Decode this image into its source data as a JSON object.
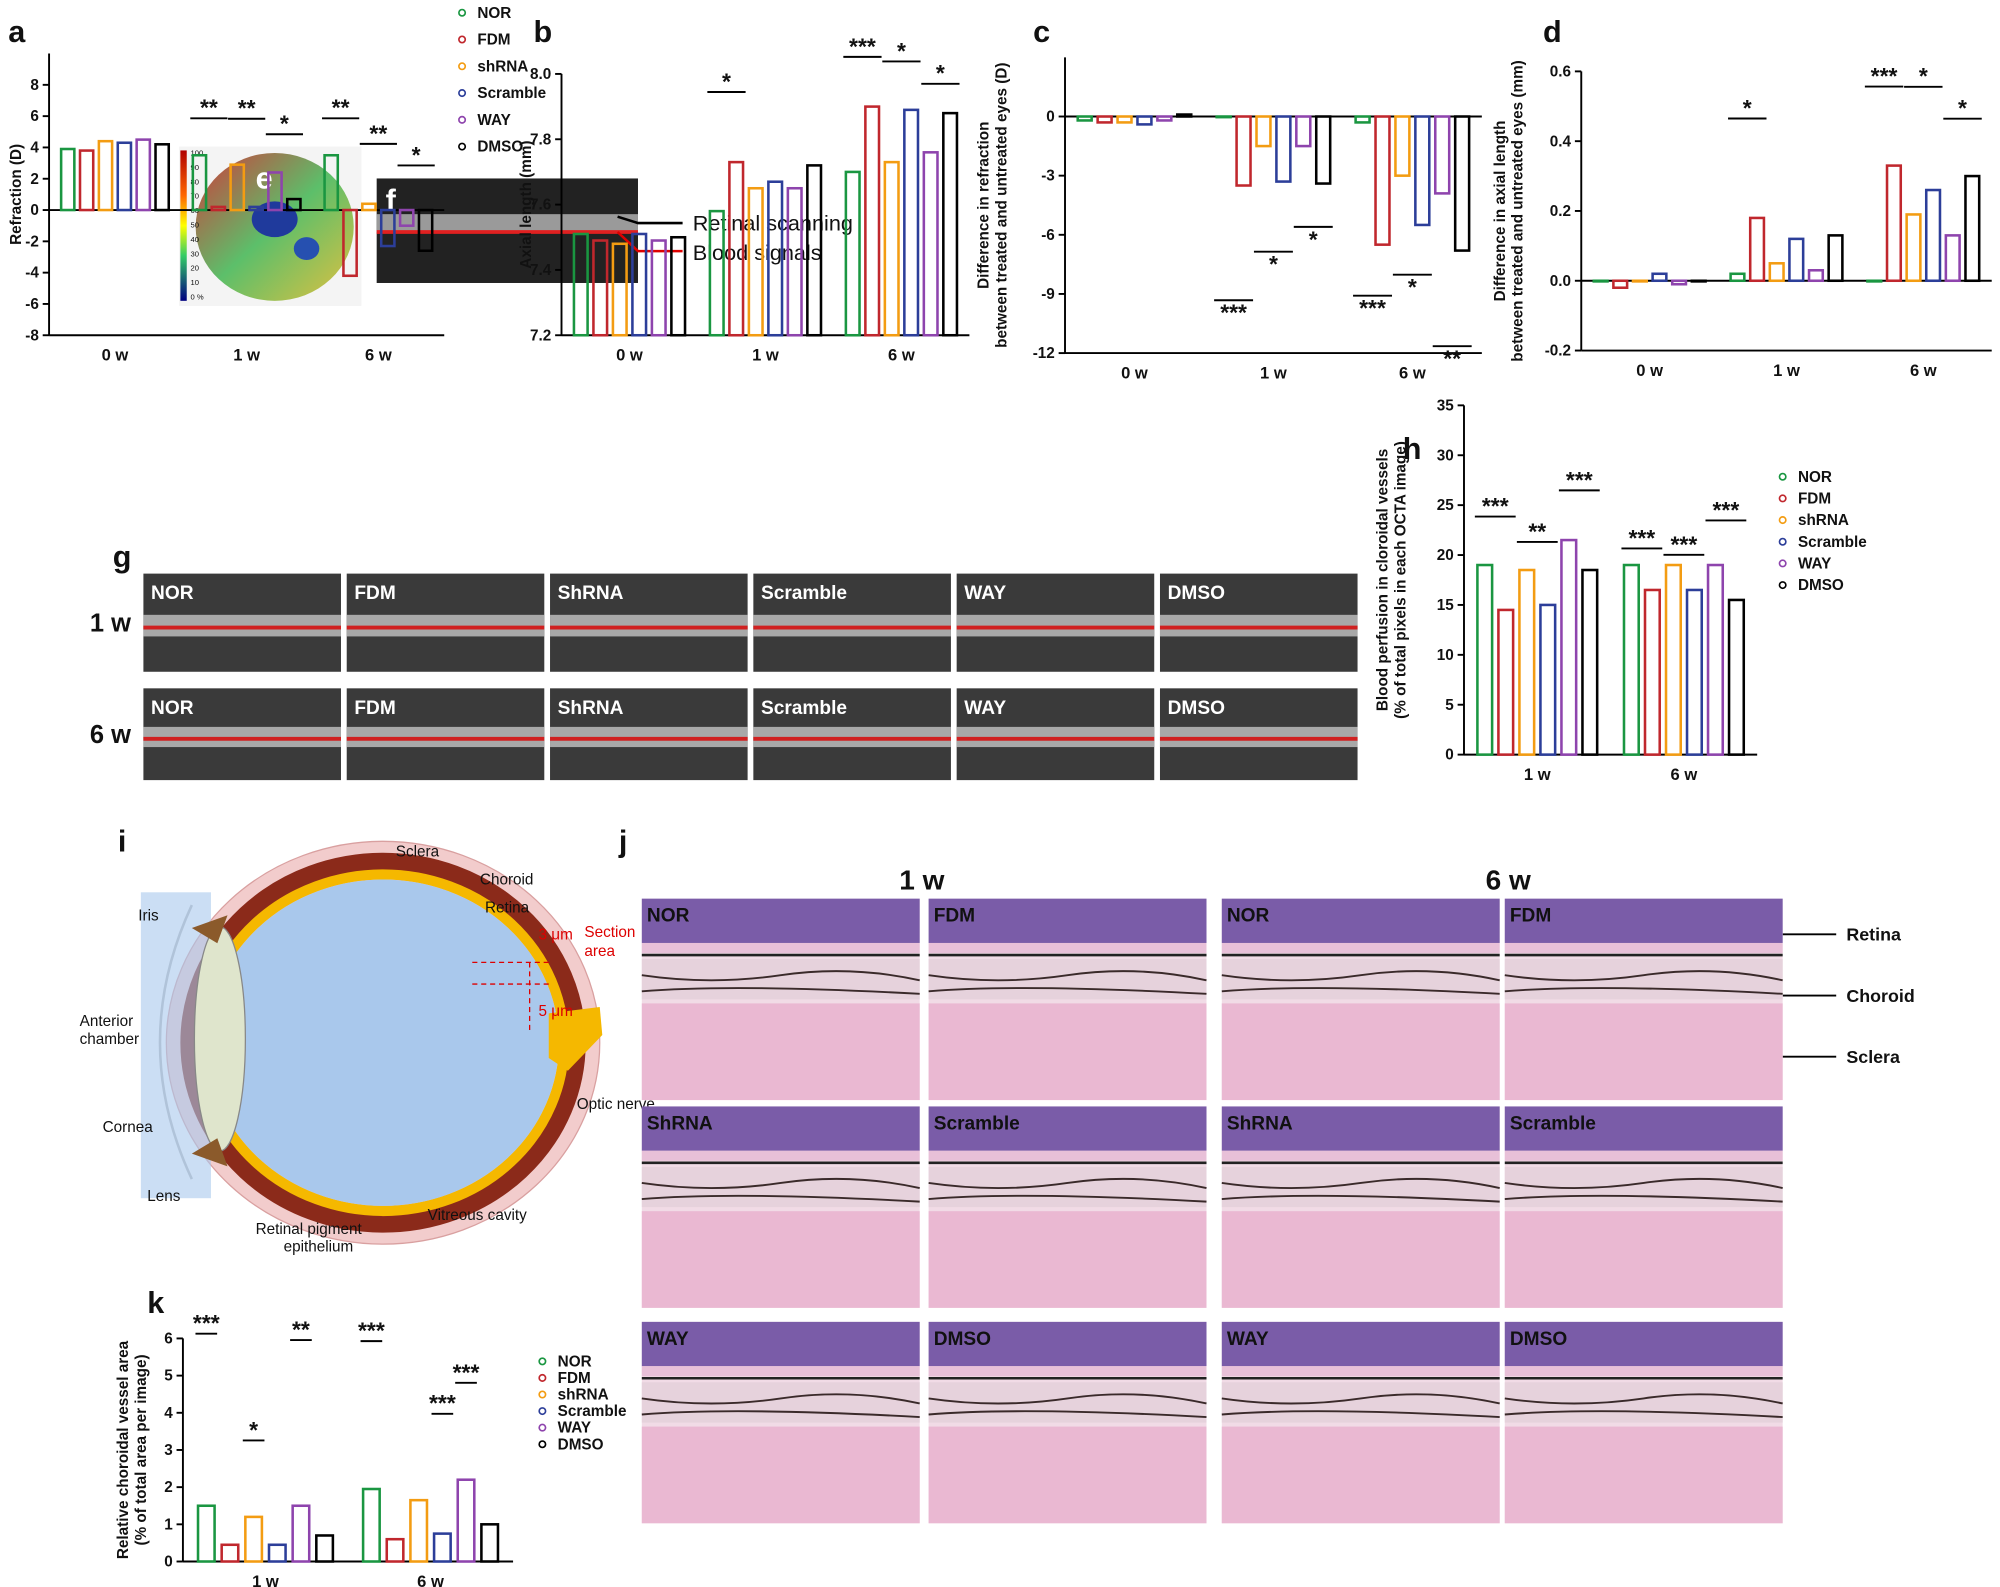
{
  "chart_data": [
    {
      "type": "bar",
      "label": "a",
      "ylabel": [
        "Refraction (D)"
      ],
      "categories": [
        "0 w",
        "1 w",
        "6 w"
      ],
      "ylim": [
        -8,
        10
      ],
      "yticks": [
        -8,
        -6,
        -4,
        -2,
        0,
        2,
        4,
        6,
        8
      ],
      "legend": "right",
      "series": [
        {
          "name": "NOR",
          "color": "#1a9641",
          "values": [
            3.9,
            3.5,
            3.5
          ]
        },
        {
          "name": "FDM",
          "color": "#c0272d",
          "values": [
            3.8,
            0.2,
            -4.2
          ]
        },
        {
          "name": "shRNA",
          "color": "#f39c12",
          "values": [
            4.4,
            2.9,
            0.4
          ]
        },
        {
          "name": "Scramble",
          "color": "#2c3e99",
          "values": [
            4.3,
            0.2,
            -2.3
          ]
        },
        {
          "name": "WAY",
          "color": "#8e44ad",
          "values": [
            4.5,
            2.4,
            -1.0
          ]
        },
        {
          "name": "DMSO",
          "color": "#000000",
          "values": [
            4.2,
            0.7,
            -2.6
          ]
        }
      ],
      "annotations": [
        "**",
        "**",
        "*",
        "**",
        "**",
        "*"
      ]
    },
    {
      "type": "bar",
      "label": "b",
      "ylabel": [
        "Axial length (mm)"
      ],
      "categories": [
        "0 w",
        "1 w",
        "6 w"
      ],
      "ylim": [
        7.2,
        8.0
      ],
      "yticks": [
        7.2,
        7.4,
        7.6,
        7.8,
        {
          "value": 8,
          "label": "8.0"
        }
      ],
      "series": [
        {
          "color": "#1a9641",
          "values": [
            7.51,
            7.58,
            7.7
          ]
        },
        {
          "color": "#c0272d",
          "values": [
            7.49,
            7.73,
            7.9
          ]
        },
        {
          "color": "#f39c12",
          "values": [
            7.48,
            7.65,
            7.73
          ]
        },
        {
          "color": "#2c3e99",
          "values": [
            7.51,
            7.67,
            7.89
          ]
        },
        {
          "color": "#8e44ad",
          "values": [
            7.49,
            7.65,
            7.76
          ]
        },
        {
          "color": "#000000",
          "values": [
            7.5,
            7.72,
            7.88
          ]
        }
      ],
      "annotations": [
        "*",
        "***",
        "*",
        "*"
      ]
    },
    {
      "type": "bar",
      "label": "c",
      "ylabel": [
        "Difference in refraction",
        "between treated and untreated eyes (D)"
      ],
      "categories": [
        "0 w",
        "1 w",
        "6 w"
      ],
      "ylim": [
        -12,
        3
      ],
      "yticks": [
        -12,
        -9,
        -6,
        -3,
        0
      ],
      "series": [
        {
          "color": "#1a9641",
          "values": [
            -0.2,
            0,
            -0.3
          ]
        },
        {
          "color": "#c0272d",
          "values": [
            -0.3,
            -3.5,
            -6.5
          ]
        },
        {
          "color": "#f39c12",
          "values": [
            -0.3,
            -1.5,
            -3
          ]
        },
        {
          "color": "#2c3e99",
          "values": [
            -0.4,
            -3.3,
            -5.5
          ]
        },
        {
          "color": "#8e44ad",
          "values": [
            -0.2,
            -1.5,
            -3.9
          ]
        },
        {
          "color": "#000000",
          "values": [
            0.1,
            -3.4,
            -6.8
          ]
        }
      ],
      "annotations": [
        "***",
        "*",
        "*",
        "***",
        "*",
        "**"
      ]
    },
    {
      "type": "bar",
      "label": "d",
      "ylabel": [
        "Difference in axial length",
        "between treated and untreated eyes (mm)"
      ],
      "categories": [
        "0 w",
        "1 w",
        "6 w"
      ],
      "ylim": [
        -0.2,
        0.6
      ],
      "yticks": [
        -0.2,
        {
          "value": 0,
          "label": "0.0"
        },
        0.2,
        0.4,
        0.6
      ],
      "series": [
        {
          "color": "#1a9641",
          "values": [
            0.0,
            0.02,
            0.0
          ]
        },
        {
          "color": "#c0272d",
          "values": [
            -0.02,
            0.18,
            0.33
          ]
        },
        {
          "color": "#f39c12",
          "values": [
            0.0,
            0.05,
            0.19
          ]
        },
        {
          "color": "#2c3e99",
          "values": [
            0.02,
            0.12,
            0.26
          ]
        },
        {
          "color": "#8e44ad",
          "values": [
            -0.01,
            0.03,
            0.13
          ]
        },
        {
          "color": "#000000",
          "values": [
            0.0,
            0.13,
            0.3
          ]
        }
      ],
      "annotations": [
        "*",
        "***",
        "*",
        "*"
      ]
    },
    {
      "type": "bar",
      "label": "h",
      "ylabel": [
        "Blood perfusion in cloroidal vessels",
        "(% of total pixels in each OCTA image)"
      ],
      "categories": [
        "1 w",
        "6 w"
      ],
      "ylim": [
        0,
        35
      ],
      "yticks": [
        0,
        5,
        10,
        15,
        20,
        25,
        30,
        35
      ],
      "legend": "right",
      "series": [
        {
          "name": "NOR",
          "color": "#1a9641",
          "values": [
            19,
            19
          ]
        },
        {
          "name": "FDM",
          "color": "#c0272d",
          "values": [
            14.5,
            16.5
          ]
        },
        {
          "name": "shRNA",
          "color": "#f39c12",
          "values": [
            18.5,
            19
          ]
        },
        {
          "name": "Scramble",
          "color": "#2c3e99",
          "values": [
            15,
            16.5
          ]
        },
        {
          "name": "WAY",
          "color": "#8e44ad",
          "values": [
            21.5,
            19
          ]
        },
        {
          "name": "DMSO",
          "color": "#000000",
          "values": [
            18.5,
            15.5
          ]
        }
      ],
      "annotations": [
        "***",
        "**",
        "***",
        "***",
        "***",
        "***"
      ]
    },
    {
      "type": "bar",
      "label": "k",
      "ylabel": [
        "Relative choroidal vessel area",
        "(% of total area per image)"
      ],
      "categories": [
        "1 w",
        "6 w"
      ],
      "ylim": [
        0,
        6
      ],
      "yticks": [
        0,
        1,
        2,
        3,
        4,
        5,
        6
      ],
      "legend": "right",
      "series": [
        {
          "name": "NOR",
          "color": "#1a9641",
          "values": [
            1.5,
            1.95
          ]
        },
        {
          "name": "FDM",
          "color": "#c0272d",
          "values": [
            0.45,
            0.6
          ]
        },
        {
          "name": "shRNA",
          "color": "#f39c12",
          "values": [
            1.2,
            1.65
          ]
        },
        {
          "name": "Scramble",
          "color": "#2c3e99",
          "values": [
            0.45,
            0.75
          ]
        },
        {
          "name": "WAY",
          "color": "#8e44ad",
          "values": [
            1.5,
            2.2
          ]
        },
        {
          "name": "DMSO",
          "color": "#000000",
          "values": [
            0.7,
            1.0
          ]
        }
      ],
      "annotations": [
        "***",
        "*",
        "**",
        "***",
        "***",
        "***"
      ]
    }
  ],
  "panels": {
    "e": {
      "label": "e",
      "colorbar": [
        "100",
        "90",
        "80",
        "70",
        "60",
        "50",
        "40",
        "30",
        "20",
        "10",
        "0 %"
      ]
    },
    "f": {
      "label": "f",
      "annotations": [
        "Retinal scanning",
        "Blood signals"
      ]
    },
    "g": {
      "label": "g",
      "rows": [
        "1 w",
        "6 w"
      ],
      "columns": [
        "NOR",
        "FDM",
        "ShRNA",
        "Scramble",
        "WAY",
        "DMSO"
      ]
    },
    "i": {
      "label": "i",
      "parts": {
        "sclera": "Sclera",
        "choroid": "Choroid",
        "retina": "Retina",
        "iris": "Iris",
        "anterior": [
          "Anterior",
          "chamber"
        ],
        "cornea": "Cornea",
        "lens": "Lens",
        "rpe": [
          "Retinal pigment",
          "epithelium"
        ],
        "vitreous": "Vitreous cavity",
        "optic": "Optic nerve",
        "d1": "3 μm",
        "d2": "5 μm",
        "section": [
          "Section",
          "area"
        ]
      }
    },
    "j": {
      "label": "j",
      "times": [
        "1 w",
        "6 w"
      ],
      "images": [
        "NOR",
        "FDM",
        "NOR",
        "FDM",
        "ShRNA",
        "Scramble",
        "ShRNA",
        "Scramble",
        "WAY",
        "DMSO",
        "WAY",
        "DMSO"
      ],
      "layers": [
        "Retina",
        "Choroid",
        "Sclera"
      ]
    }
  }
}
